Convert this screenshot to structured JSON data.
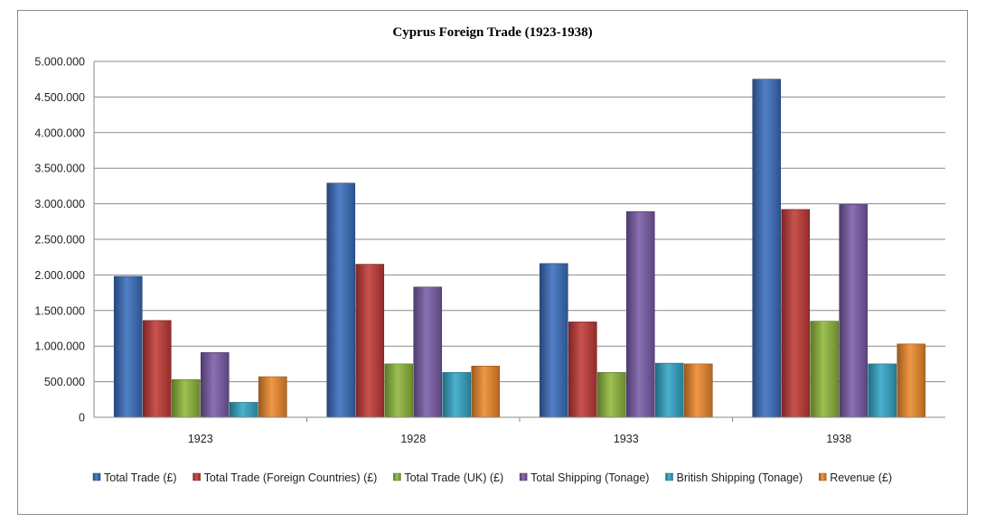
{
  "chart_data": {
    "type": "bar",
    "title": "Cyprus Foreign Trade (1923-1938)",
    "xlabel": "",
    "ylabel": "",
    "categories": [
      "1923",
      "1928",
      "1933",
      "1938"
    ],
    "ylim": [
      0,
      5000000
    ],
    "ytick_values": [
      0,
      500000,
      1000000,
      1500000,
      2000000,
      2500000,
      3000000,
      3500000,
      4000000,
      4500000,
      5000000
    ],
    "ytick_labels": [
      "0",
      "500.000",
      "1.000.000",
      "1.500.000",
      "2.000.000",
      "2.500.000",
      "3.000.000",
      "3.500.000",
      "4.000.000",
      "4.500.000",
      "5.000.000"
    ],
    "grid": true,
    "legend_position": "bottom",
    "series": [
      {
        "name": "Total Trade (£)",
        "color": "#3a6fbf",
        "values": [
          1980000,
          3290000,
          2160000,
          4750000
        ]
      },
      {
        "name": "Total Trade (Foreign Countries) (£)",
        "color": "#c23a36",
        "values": [
          1360000,
          2150000,
          1340000,
          2920000
        ]
      },
      {
        "name": "Total Trade (UK) (£)",
        "color": "#8fb83c",
        "values": [
          530000,
          750000,
          630000,
          1350000
        ]
      },
      {
        "name": "Total Shipping (Tonage)",
        "color": "#7a5ca8",
        "values": [
          910000,
          1830000,
          2890000,
          2990000
        ]
      },
      {
        "name": "British Shipping (Tonage)",
        "color": "#33a6c6",
        "values": [
          210000,
          630000,
          760000,
          750000
        ]
      },
      {
        "name": "Revenue (£)",
        "color": "#ee8a2c",
        "values": [
          570000,
          720000,
          750000,
          1030000
        ]
      }
    ]
  }
}
